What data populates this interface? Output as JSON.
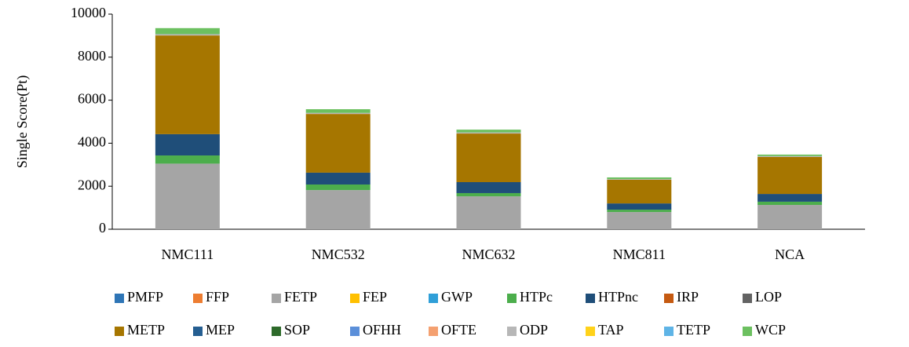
{
  "chart_data": {
    "type": "stacked-bar",
    "y_label": "Single Score(Pt)",
    "categories": [
      "NMC111",
      "NMC532",
      "NMC632",
      "NMC811",
      "NCA"
    ],
    "ylim": [
      0,
      10000
    ],
    "yticks": [
      0,
      2000,
      4000,
      6000,
      8000,
      10000
    ],
    "grid": false,
    "legend": "bottom",
    "series": [
      {
        "name": "PMFP",
        "color": "#2e75b6",
        "values": [
          0,
          0,
          0,
          0,
          0
        ]
      },
      {
        "name": "FFP",
        "color": "#ed7d31",
        "values": [
          0,
          0,
          0,
          0,
          0
        ]
      },
      {
        "name": "FETP",
        "color": "#a5a5a5",
        "values": [
          3050,
          1820,
          1530,
          800,
          1130
        ]
      },
      {
        "name": "FEP",
        "color": "#ffc000",
        "values": [
          0,
          0,
          0,
          0,
          0
        ]
      },
      {
        "name": "GWP",
        "color": "#2f9fd8",
        "values": [
          0,
          0,
          0,
          0,
          0
        ]
      },
      {
        "name": "HTPc",
        "color": "#4cae4c",
        "values": [
          380,
          260,
          150,
          110,
          150
        ]
      },
      {
        "name": "HTPnc",
        "color": "#1f4e79",
        "values": [
          990,
          550,
          510,
          290,
          360
        ]
      },
      {
        "name": "IRP",
        "color": "#c55a11",
        "values": [
          0,
          0,
          0,
          0,
          0
        ]
      },
      {
        "name": "LOP",
        "color": "#636363",
        "values": [
          0,
          0,
          0,
          0,
          0
        ]
      },
      {
        "name": "METP",
        "color": "#a67600",
        "values": [
          4590,
          2730,
          2260,
          1100,
          1720
        ]
      },
      {
        "name": "MEP",
        "color": "#255e91",
        "values": [
          0,
          0,
          0,
          0,
          0
        ]
      },
      {
        "name": "SOP",
        "color": "#2d6a2a",
        "values": [
          0,
          0,
          0,
          0,
          0
        ]
      },
      {
        "name": "OFHH",
        "color": "#5b8fd9",
        "values": [
          0,
          0,
          0,
          0,
          0
        ]
      },
      {
        "name": "OFTE",
        "color": "#f4a070",
        "values": [
          0,
          0,
          0,
          0,
          0
        ]
      },
      {
        "name": "ODP",
        "color": "#b7b7b7",
        "values": [
          60,
          50,
          50,
          30,
          40
        ]
      },
      {
        "name": "TAP",
        "color": "#ffd21a",
        "values": [
          0,
          0,
          0,
          0,
          0
        ]
      },
      {
        "name": "TETP",
        "color": "#5fb4e6",
        "values": [
          0,
          0,
          0,
          0,
          0
        ]
      },
      {
        "name": "WCP",
        "color": "#6cc060",
        "values": [
          280,
          170,
          130,
          80,
          70
        ]
      }
    ]
  }
}
